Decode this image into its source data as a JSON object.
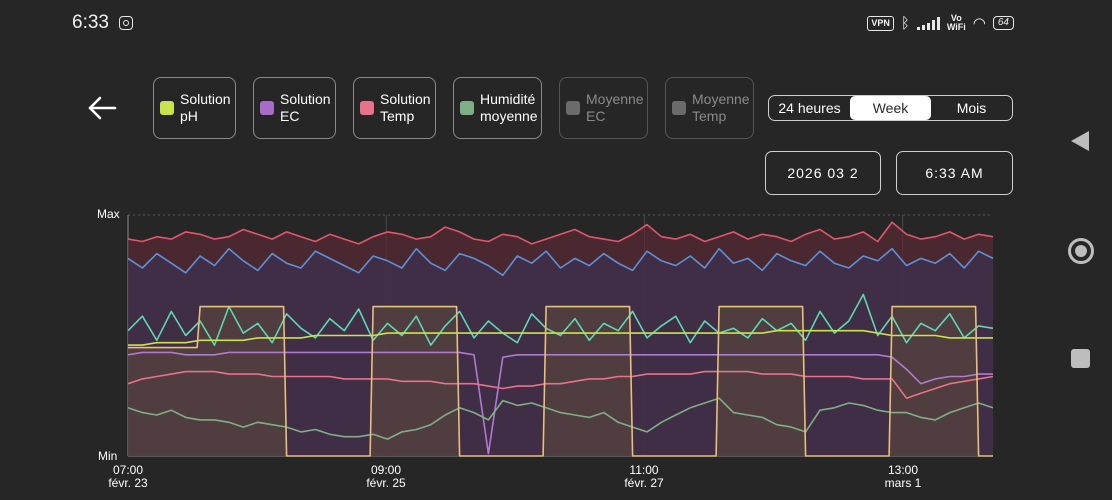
{
  "status_bar": {
    "time": "6:33",
    "vpn": "VPN",
    "vowifi_top": "Vo",
    "vowifi_bottom": "WiFi",
    "battery": "64"
  },
  "legend": [
    {
      "label": "Solution\npH",
      "color": "#c9e34a",
      "enabled": true
    },
    {
      "label": "Solution\nEC",
      "color": "#a76cc7",
      "enabled": true
    },
    {
      "label": "Solution\nTemp",
      "color": "#e8728a",
      "enabled": true
    },
    {
      "label": "Humidité\nmoyenne",
      "color": "#7fae86",
      "enabled": true
    },
    {
      "label": "Moyenne\nEC",
      "color": "#6b6b6b",
      "enabled": false
    },
    {
      "label": "Moyenne\nTemp",
      "color": "#6b6b6b",
      "enabled": false
    }
  ],
  "range": {
    "options": [
      "24 heures",
      "Week",
      "Mois"
    ],
    "selected": "Week"
  },
  "date_value": "2026 03 2",
  "time_value": "6:33 AM",
  "chart_data": {
    "type": "line",
    "ylabel_max": "Max",
    "ylabel_min": "Min",
    "x_ticks": [
      {
        "time": "07:00",
        "date": "févr. 23"
      },
      {
        "time": "09:00",
        "date": "févr. 25"
      },
      {
        "time": "11:00",
        "date": "févr. 27"
      },
      {
        "time": "13:00",
        "date": "mars 1"
      }
    ],
    "series": [
      {
        "key": "top-red",
        "color": "#e0566f",
        "fill": "#5a2a35",
        "values": [
          0.9,
          0.89,
          0.91,
          0.9,
          0.93,
          0.92,
          0.9,
          0.91,
          0.94,
          0.92,
          0.9,
          0.93,
          0.91,
          0.89,
          0.92,
          0.9,
          0.88,
          0.91,
          0.93,
          0.92,
          0.9,
          0.91,
          0.95,
          0.93,
          0.9,
          0.89,
          0.92,
          0.91,
          0.88,
          0.9,
          0.92,
          0.94,
          0.91,
          0.9,
          0.89,
          0.92,
          0.96,
          0.91,
          0.9,
          0.92,
          0.89,
          0.91,
          0.93,
          0.9,
          0.92,
          0.91,
          0.89,
          0.92,
          0.94,
          0.9,
          0.91,
          0.93,
          0.89,
          0.97,
          0.92,
          0.9,
          0.91,
          0.93,
          0.9,
          0.92,
          0.91
        ]
      },
      {
        "key": "blue",
        "color": "#5f8fd6",
        "fill": "#3a3150",
        "values": [
          0.82,
          0.78,
          0.84,
          0.8,
          0.76,
          0.83,
          0.79,
          0.86,
          0.81,
          0.77,
          0.84,
          0.8,
          0.78,
          0.85,
          0.82,
          0.79,
          0.76,
          0.83,
          0.81,
          0.78,
          0.86,
          0.8,
          0.77,
          0.84,
          0.82,
          0.79,
          0.75,
          0.83,
          0.8,
          0.85,
          0.78,
          0.82,
          0.79,
          0.84,
          0.8,
          0.77,
          0.85,
          0.81,
          0.79,
          0.83,
          0.78,
          0.86,
          0.8,
          0.82,
          0.77,
          0.84,
          0.81,
          0.79,
          0.85,
          0.8,
          0.78,
          0.83,
          0.81,
          0.86,
          0.79,
          0.82,
          0.8,
          0.84,
          0.78,
          0.85,
          0.82
        ]
      },
      {
        "key": "teal",
        "color": "#5fd6b4",
        "values": [
          0.52,
          0.58,
          0.48,
          0.6,
          0.5,
          0.56,
          0.46,
          0.62,
          0.51,
          0.55,
          0.47,
          0.59,
          0.53,
          0.49,
          0.57,
          0.52,
          0.61,
          0.48,
          0.55,
          0.5,
          0.58,
          0.46,
          0.54,
          0.6,
          0.49,
          0.56,
          0.51,
          0.47,
          0.59,
          0.53,
          0.5,
          0.57,
          0.48,
          0.55,
          0.52,
          0.6,
          0.49,
          0.54,
          0.58,
          0.47,
          0.56,
          0.51,
          0.53,
          0.49,
          0.57,
          0.52,
          0.55,
          0.48,
          0.6,
          0.51,
          0.56,
          0.67,
          0.5,
          0.58,
          0.47,
          0.55,
          0.52,
          0.59,
          0.49,
          0.54,
          0.53
        ]
      },
      {
        "key": "ph-yellow",
        "color": "#c9e34a",
        "values": [
          0.46,
          0.46,
          0.47,
          0.47,
          0.47,
          0.48,
          0.48,
          0.48,
          0.48,
          0.49,
          0.49,
          0.49,
          0.49,
          0.5,
          0.5,
          0.5,
          0.5,
          0.5,
          0.51,
          0.51,
          0.51,
          0.51,
          0.51,
          0.51,
          0.51,
          0.51,
          0.51,
          0.51,
          0.51,
          0.51,
          0.51,
          0.51,
          0.51,
          0.51,
          0.51,
          0.51,
          0.51,
          0.51,
          0.51,
          0.51,
          0.51,
          0.51,
          0.51,
          0.51,
          0.51,
          0.52,
          0.52,
          0.52,
          0.52,
          0.52,
          0.52,
          0.52,
          0.51,
          0.5,
          0.5,
          0.5,
          0.5,
          0.49,
          0.49,
          0.49,
          0.49
        ]
      },
      {
        "key": "ec-purple",
        "color": "#b17ad0",
        "values": [
          0.42,
          0.43,
          0.43,
          0.43,
          0.42,
          0.42,
          0.42,
          0.43,
          0.43,
          0.43,
          0.43,
          0.43,
          0.43,
          0.43,
          0.43,
          0.43,
          0.43,
          0.43,
          0.43,
          0.43,
          0.43,
          0.43,
          0.43,
          0.43,
          0.42,
          0.01,
          0.41,
          0.42,
          0.42,
          0.42,
          0.42,
          0.42,
          0.42,
          0.42,
          0.42,
          0.42,
          0.42,
          0.42,
          0.42,
          0.42,
          0.42,
          0.42,
          0.42,
          0.42,
          0.42,
          0.42,
          0.42,
          0.42,
          0.42,
          0.42,
          0.42,
          0.42,
          0.42,
          0.41,
          0.36,
          0.3,
          0.32,
          0.33,
          0.33,
          0.34,
          0.34
        ]
      },
      {
        "key": "temp-pink",
        "color": "#e8728a",
        "values": [
          0.3,
          0.32,
          0.33,
          0.34,
          0.35,
          0.35,
          0.35,
          0.34,
          0.34,
          0.34,
          0.33,
          0.33,
          0.33,
          0.33,
          0.33,
          0.32,
          0.32,
          0.32,
          0.32,
          0.31,
          0.31,
          0.31,
          0.3,
          0.3,
          0.3,
          0.29,
          0.28,
          0.29,
          0.29,
          0.3,
          0.3,
          0.31,
          0.32,
          0.32,
          0.33,
          0.33,
          0.34,
          0.34,
          0.34,
          0.34,
          0.35,
          0.35,
          0.35,
          0.35,
          0.34,
          0.34,
          0.34,
          0.33,
          0.33,
          0.33,
          0.33,
          0.32,
          0.32,
          0.32,
          0.24,
          0.26,
          0.28,
          0.3,
          0.31,
          0.32,
          0.33
        ]
      },
      {
        "key": "humid-green",
        "color": "#7fae86",
        "values": [
          0.2,
          0.18,
          0.17,
          0.19,
          0.16,
          0.15,
          0.15,
          0.14,
          0.12,
          0.14,
          0.13,
          0.12,
          0.1,
          0.11,
          0.09,
          0.08,
          0.08,
          0.09,
          0.07,
          0.1,
          0.11,
          0.13,
          0.17,
          0.2,
          0.18,
          0.15,
          0.23,
          0.21,
          0.22,
          0.2,
          0.18,
          0.17,
          0.16,
          0.18,
          0.14,
          0.12,
          0.1,
          0.14,
          0.17,
          0.2,
          0.22,
          0.24,
          0.18,
          0.17,
          0.16,
          0.13,
          0.12,
          0.1,
          0.19,
          0.2,
          0.22,
          0.21,
          0.19,
          0.18,
          0.18,
          0.16,
          0.15,
          0.18,
          0.2,
          0.22,
          0.2
        ]
      },
      {
        "key": "light-orange",
        "color": "#e8c07a",
        "fill": "#5e4b3a",
        "values": [
          0.45,
          0.45,
          0.45,
          0.45,
          0.45,
          0.62,
          0.62,
          0.62,
          0.62,
          0.62,
          0.62,
          0.0,
          0.0,
          0.0,
          0.0,
          0.0,
          0.0,
          0.62,
          0.62,
          0.62,
          0.62,
          0.62,
          0.62,
          0.0,
          0.0,
          0.0,
          0.0,
          0.0,
          0.0,
          0.62,
          0.62,
          0.62,
          0.62,
          0.62,
          0.62,
          0.0,
          0.0,
          0.0,
          0.0,
          0.0,
          0.0,
          0.62,
          0.62,
          0.62,
          0.62,
          0.62,
          0.62,
          0.0,
          0.0,
          0.0,
          0.0,
          0.0,
          0.0,
          0.62,
          0.62,
          0.62,
          0.62,
          0.62,
          0.62,
          0.0,
          0.0
        ]
      }
    ]
  }
}
